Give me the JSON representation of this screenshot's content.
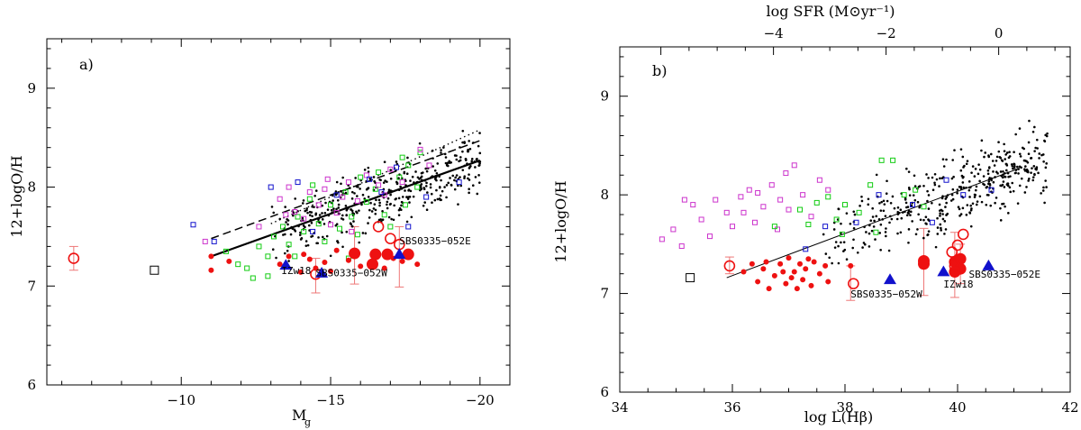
{
  "chart_data": [
    {
      "type": "scatter",
      "panel_label": "a)",
      "xlabel": "M",
      "xlabel_sub": "g",
      "ylabel": "12+logO/H",
      "xlim": [
        -5.5,
        -21.0
      ],
      "ylim": [
        6.0,
        9.5
      ],
      "x_ticks": [
        -10,
        -15,
        -20
      ],
      "x_tick_labels": [
        "−10",
        "−15",
        "−20"
      ],
      "y_ticks": [
        6,
        7,
        8,
        9
      ],
      "y_tick_labels": [
        "6",
        "7",
        "8",
        "9"
      ],
      "colors": {
        "black_points": "#000000",
        "green": "#11cc11",
        "magenta": "#cc33cc",
        "blue": "#1111cc",
        "red": "#ee1111",
        "triangle": "#0000dd",
        "errorbar": "#ee7777"
      },
      "annotations": [
        {
          "text": "IZw18",
          "x": -13.35,
          "y": 7.12
        },
        {
          "text": "SBS0335−052W",
          "x": -14.5,
          "y": 7.1
        },
        {
          "text": "SBS0335−052E",
          "x": -17.3,
          "y": 7.42
        }
      ],
      "fits": [
        {
          "style": "solid",
          "x": [
            -11.0,
            -20.0
          ],
          "y": [
            7.3,
            8.27
          ]
        },
        {
          "style": "dashed",
          "x": [
            -11.0,
            -20.0
          ],
          "y": [
            7.48,
            8.47
          ]
        },
        {
          "style": "dotted",
          "x": [
            -13.0,
            -20.0
          ],
          "y": [
            7.63,
            8.58
          ]
        }
      ],
      "series": [
        {
          "marker": "dot",
          "color": "black",
          "count": 420,
          "x_range": [
            -13,
            -20
          ],
          "y_center_fit": "solid",
          "scatter_sd": 0.16
        },
        {
          "marker": "open_square",
          "color": "green",
          "points": [
            [
              -11.5,
              7.35
            ],
            [
              -11.9,
              7.22
            ],
            [
              -12.2,
              7.18
            ],
            [
              -12.6,
              7.4
            ],
            [
              -12.9,
              7.3
            ],
            [
              -13.1,
              7.5
            ],
            [
              -13.4,
              7.6
            ],
            [
              -13.6,
              7.42
            ],
            [
              -13.9,
              7.7
            ],
            [
              -14.1,
              7.55
            ],
            [
              -14.3,
              7.88
            ],
            [
              -14.6,
              7.63
            ],
            [
              -14.8,
              7.45
            ],
            [
              -15.0,
              7.82
            ],
            [
              -15.3,
              7.58
            ],
            [
              -15.5,
              7.95
            ],
            [
              -15.7,
              7.7
            ],
            [
              -15.9,
              7.52
            ],
            [
              -16.2,
              7.85
            ],
            [
              -16.5,
              7.98
            ],
            [
              -16.8,
              7.72
            ],
            [
              -17.0,
              7.6
            ],
            [
              -17.3,
              8.1
            ],
            [
              -17.6,
              8.22
            ],
            [
              -17.9,
              8.0
            ],
            [
              -17.4,
              8.3
            ],
            [
              -16.6,
              8.15
            ],
            [
              -12.4,
              7.08
            ],
            [
              -13.8,
              7.3
            ],
            [
              -15.6,
              7.28
            ],
            [
              -17.5,
              7.82
            ],
            [
              -14.4,
              8.02
            ],
            [
              -16.0,
              8.1
            ],
            [
              -18.0,
              8.35
            ],
            [
              -12.9,
              7.1
            ]
          ]
        },
        {
          "marker": "open_square",
          "color": "magenta",
          "points": [
            [
              -10.8,
              7.45
            ],
            [
              -12.6,
              7.6
            ],
            [
              -13.3,
              7.88
            ],
            [
              -13.6,
              8.0
            ],
            [
              -13.8,
              7.75
            ],
            [
              -14.1,
              7.68
            ],
            [
              -14.3,
              7.95
            ],
            [
              -14.6,
              7.82
            ],
            [
              -14.8,
              7.98
            ],
            [
              -15.0,
              7.62
            ],
            [
              -15.2,
              7.74
            ],
            [
              -15.4,
              7.9
            ],
            [
              -15.6,
              8.05
            ],
            [
              -15.9,
              7.86
            ],
            [
              -16.2,
              8.12
            ],
            [
              -16.6,
              8.02
            ],
            [
              -17.0,
              8.18
            ],
            [
              -17.4,
              8.05
            ],
            [
              -18.0,
              8.38
            ],
            [
              -18.3,
              8.22
            ],
            [
              -13.5,
              7.72
            ],
            [
              -15.7,
              7.55
            ],
            [
              -16.8,
              7.92
            ],
            [
              -14.9,
              8.08
            ]
          ]
        },
        {
          "marker": "open_square",
          "color": "blue",
          "points": [
            [
              -10.4,
              7.62
            ],
            [
              -11.1,
              7.45
            ],
            [
              -13.0,
              8.0
            ],
            [
              -13.9,
              8.05
            ],
            [
              -14.4,
              7.55
            ],
            [
              -15.2,
              7.92
            ],
            [
              -16.3,
              8.08
            ],
            [
              -17.2,
              8.2
            ],
            [
              -18.2,
              7.9
            ],
            [
              -17.6,
              7.6
            ],
            [
              -19.3,
              8.05
            ],
            [
              -16.7,
              7.95
            ]
          ]
        },
        {
          "marker": "filled_circle_small",
          "color": "red",
          "points": [
            [
              -11.0,
              7.3
            ],
            [
              -11.0,
              7.16
            ],
            [
              -11.6,
              7.25
            ],
            [
              -13.3,
              7.22
            ],
            [
              -13.6,
              7.3
            ],
            [
              -14.1,
              7.32
            ],
            [
              -14.5,
              7.18
            ],
            [
              -14.8,
              7.24
            ],
            [
              -15.0,
              7.15
            ],
            [
              -14.3,
              7.27
            ],
            [
              -16.0,
              7.2
            ],
            [
              -16.8,
              7.18
            ],
            [
              -17.1,
              7.28
            ],
            [
              -17.6,
              7.3
            ],
            [
              -17.9,
              7.22
            ],
            [
              -15.6,
              7.26
            ],
            [
              -14.0,
              7.14
            ],
            [
              -16.4,
              7.22
            ],
            [
              -17.4,
              7.25
            ],
            [
              -15.2,
              7.36
            ]
          ]
        },
        {
          "marker": "filled_circle_large",
          "color": "red",
          "points": [
            [
              -15.8,
              7.33
            ],
            [
              -16.5,
              7.32
            ],
            [
              -16.4,
              7.22
            ],
            [
              -16.9,
              7.32
            ],
            [
              -17.6,
              7.32
            ]
          ]
        },
        {
          "marker": "open_circle",
          "color": "red",
          "points": [
            [
              -6.4,
              7.28
            ],
            [
              -14.5,
              7.12
            ],
            [
              -16.6,
              7.6
            ],
            [
              -17.0,
              7.48
            ],
            [
              -17.3,
              7.42
            ]
          ]
        },
        {
          "marker": "open_square",
          "color": "black",
          "points": [
            [
              -9.1,
              7.16
            ]
          ]
        },
        {
          "marker": "filled_triangle",
          "color": "blue",
          "points": [
            [
              -13.5,
              7.21
            ],
            [
              -14.7,
              7.13
            ],
            [
              -17.3,
              7.32
            ]
          ]
        }
      ],
      "error_bars": [
        {
          "x": -6.4,
          "y_lo": 7.16,
          "y_hi": 7.4
        },
        {
          "x": -14.5,
          "y_lo": 6.93,
          "y_hi": 7.28
        },
        {
          "x": -15.8,
          "y_lo": 7.02,
          "y_hi": 7.6
        },
        {
          "x": -17.3,
          "y_lo": 6.99,
          "y_hi": 7.6
        }
      ]
    },
    {
      "type": "scatter",
      "panel_label": "b)",
      "xlabel": "log L(Hβ)",
      "ylabel": "12+logO/H",
      "top_xlabel": "log SFR (M⊙yr⁻¹)",
      "xlim": [
        34.0,
        42.0
      ],
      "ylim": [
        6.0,
        9.5
      ],
      "x_ticks": [
        34,
        36,
        38,
        40,
        42
      ],
      "x_tick_labels": [
        "34",
        "36",
        "38",
        "40",
        "42"
      ],
      "top_ticks_data_x": [
        36.73,
        38.73,
        40.73
      ],
      "top_tick_labels": [
        "−4",
        "−2",
        "0"
      ],
      "y_ticks": [
        6,
        7,
        8,
        9
      ],
      "y_tick_labels": [
        "6",
        "7",
        "8",
        "9"
      ],
      "annotations": [
        {
          "text": "SBS0335−052W",
          "x": 38.1,
          "y": 6.96
        },
        {
          "text": "IZw18",
          "x": 39.75,
          "y": 7.06
        },
        {
          "text": "SBS0335−052E",
          "x": 40.2,
          "y": 7.16
        }
      ],
      "fits": [
        {
          "style": "solid",
          "x": [
            35.9,
            41.1
          ],
          "y": [
            7.16,
            8.27
          ]
        }
      ],
      "series": [
        {
          "marker": "dot",
          "color": "black",
          "count": 420,
          "x_range": [
            37.6,
            41.6
          ],
          "y_center_fit": "solid",
          "scatter_sd": 0.17
        },
        {
          "marker": "open_square",
          "color": "magenta",
          "points": [
            [
              34.75,
              7.55
            ],
            [
              34.95,
              7.65
            ],
            [
              35.1,
              7.48
            ],
            [
              35.15,
              7.95
            ],
            [
              35.3,
              7.9
            ],
            [
              35.45,
              7.75
            ],
            [
              35.7,
              7.95
            ],
            [
              35.9,
              7.82
            ],
            [
              36.0,
              7.68
            ],
            [
              36.15,
              7.98
            ],
            [
              36.3,
              8.05
            ],
            [
              36.4,
              7.72
            ],
            [
              36.55,
              7.88
            ],
            [
              36.7,
              8.1
            ],
            [
              36.85,
              7.95
            ],
            [
              36.95,
              8.22
            ],
            [
              37.1,
              8.3
            ],
            [
              37.25,
              8.0
            ],
            [
              37.4,
              7.78
            ],
            [
              37.55,
              8.15
            ],
            [
              37.7,
              8.05
            ],
            [
              36.2,
              7.82
            ],
            [
              36.8,
              7.65
            ],
            [
              37.0,
              7.85
            ],
            [
              35.6,
              7.58
            ],
            [
              36.45,
              8.02
            ]
          ]
        },
        {
          "marker": "open_square",
          "color": "green",
          "points": [
            [
              37.2,
              7.85
            ],
            [
              37.35,
              7.7
            ],
            [
              37.5,
              7.92
            ],
            [
              37.7,
              7.98
            ],
            [
              37.85,
              7.75
            ],
            [
              38.0,
              7.9
            ],
            [
              38.25,
              7.82
            ],
            [
              38.45,
              8.1
            ],
            [
              38.65,
              8.35
            ],
            [
              38.85,
              8.35
            ],
            [
              39.05,
              8.0
            ],
            [
              39.25,
              8.05
            ],
            [
              38.55,
              7.62
            ],
            [
              37.95,
              7.6
            ],
            [
              39.4,
              7.88
            ],
            [
              36.75,
              7.68
            ]
          ]
        },
        {
          "marker": "open_square",
          "color": "blue",
          "points": [
            [
              37.3,
              7.45
            ],
            [
              37.65,
              7.68
            ],
            [
              38.2,
              7.72
            ],
            [
              38.6,
              8.0
            ],
            [
              39.2,
              7.9
            ],
            [
              39.55,
              7.72
            ],
            [
              40.1,
              8.0
            ],
            [
              40.6,
              8.05
            ],
            [
              39.8,
              8.15
            ]
          ]
        },
        {
          "marker": "filled_circle_small",
          "color": "red",
          "points": [
            [
              36.2,
              7.22
            ],
            [
              36.35,
              7.3
            ],
            [
              36.45,
              7.12
            ],
            [
              36.55,
              7.25
            ],
            [
              36.65,
              7.05
            ],
            [
              36.75,
              7.18
            ],
            [
              36.85,
              7.3
            ],
            [
              36.95,
              7.1
            ],
            [
              37.0,
              7.36
            ],
            [
              37.1,
              7.22
            ],
            [
              37.15,
              7.05
            ],
            [
              37.2,
              7.3
            ],
            [
              37.25,
              7.14
            ],
            [
              37.3,
              7.25
            ],
            [
              37.4,
              7.08
            ],
            [
              37.45,
              7.32
            ],
            [
              37.55,
              7.2
            ],
            [
              37.65,
              7.28
            ],
            [
              37.7,
              7.12
            ],
            [
              36.6,
              7.32
            ],
            [
              36.9,
              7.22
            ],
            [
              37.05,
              7.16
            ],
            [
              37.35,
              7.35
            ],
            [
              38.1,
              7.28
            ]
          ]
        },
        {
          "marker": "filled_circle_large",
          "color": "red",
          "points": [
            [
              39.4,
              7.33
            ],
            [
              39.4,
              7.3
            ],
            [
              39.95,
              7.32
            ],
            [
              40.05,
              7.25
            ],
            [
              40.05,
              7.35
            ],
            [
              39.95,
              7.22
            ]
          ]
        },
        {
          "marker": "open_circle",
          "color": "red",
          "points": [
            [
              35.95,
              7.28
            ],
            [
              38.15,
              7.1
            ],
            [
              39.9,
              7.42
            ],
            [
              40.0,
              7.49
            ],
            [
              40.1,
              7.6
            ],
            [
              39.95,
              7.28
            ]
          ]
        },
        {
          "marker": "open_square",
          "color": "black",
          "points": [
            [
              35.25,
              7.16
            ]
          ]
        },
        {
          "marker": "filled_triangle",
          "color": "blue",
          "points": [
            [
              38.8,
              7.14
            ],
            [
              39.75,
              7.22
            ],
            [
              40.55,
              7.28
            ]
          ]
        }
      ],
      "error_bars": [
        {
          "x": 35.95,
          "y_lo": 7.2,
          "y_hi": 7.37
        },
        {
          "x": 38.1,
          "y_lo": 6.93,
          "y_hi": 7.28
        },
        {
          "x": 39.4,
          "y_lo": 6.98,
          "y_hi": 7.66
        },
        {
          "x": 39.95,
          "y_lo": 6.96,
          "y_hi": 7.62
        },
        {
          "x": 40.05,
          "y_lo": 7.1,
          "y_hi": 7.5
        }
      ]
    }
  ]
}
